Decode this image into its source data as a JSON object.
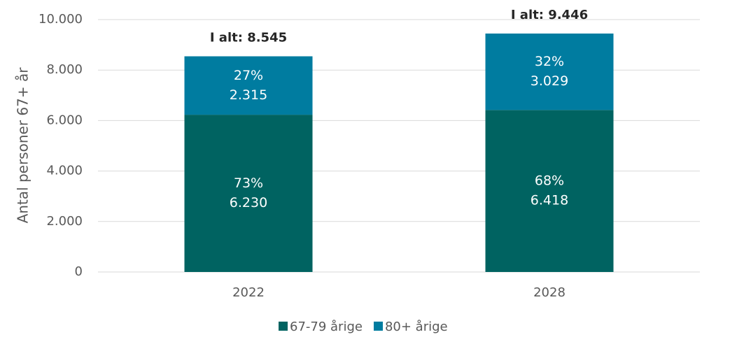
{
  "chart_data": {
    "type": "stacked_bar",
    "y_label": "Antal personer 67+ år",
    "categories": [
      "2022",
      "2028"
    ],
    "series": [
      {
        "name": "67-79 årige",
        "color": "#006361",
        "values": [
          6230,
          6418
        ],
        "value_labels": [
          "6.230",
          "6.418"
        ],
        "percentages": [
          73,
          68
        ],
        "percentage_labels": [
          "73%",
          "68%"
        ]
      },
      {
        "name": "80+ årige",
        "color": "#007ca0",
        "values": [
          2315,
          3029
        ],
        "value_labels": [
          "2.315",
          "3.029"
        ],
        "percentages": [
          27,
          32
        ],
        "percentage_labels": [
          "27%",
          "32%"
        ]
      }
    ],
    "totals": [
      8545,
      9446
    ],
    "total_labels": [
      "I alt: 8.545",
      "I alt: 9.446"
    ],
    "ylim": [
      0,
      10000
    ],
    "yticks": [
      0,
      {
        "value": 2000,
        "label": "2.000"
      },
      {
        "value": 4000,
        "label": "4.000"
      },
      {
        "value": 6000,
        "label": "6.000"
      },
      {
        "value": 8000,
        "label": "8.000"
      },
      {
        "value": 10000,
        "label": "10.000"
      }
    ],
    "grid": true,
    "legend": "bottom"
  }
}
